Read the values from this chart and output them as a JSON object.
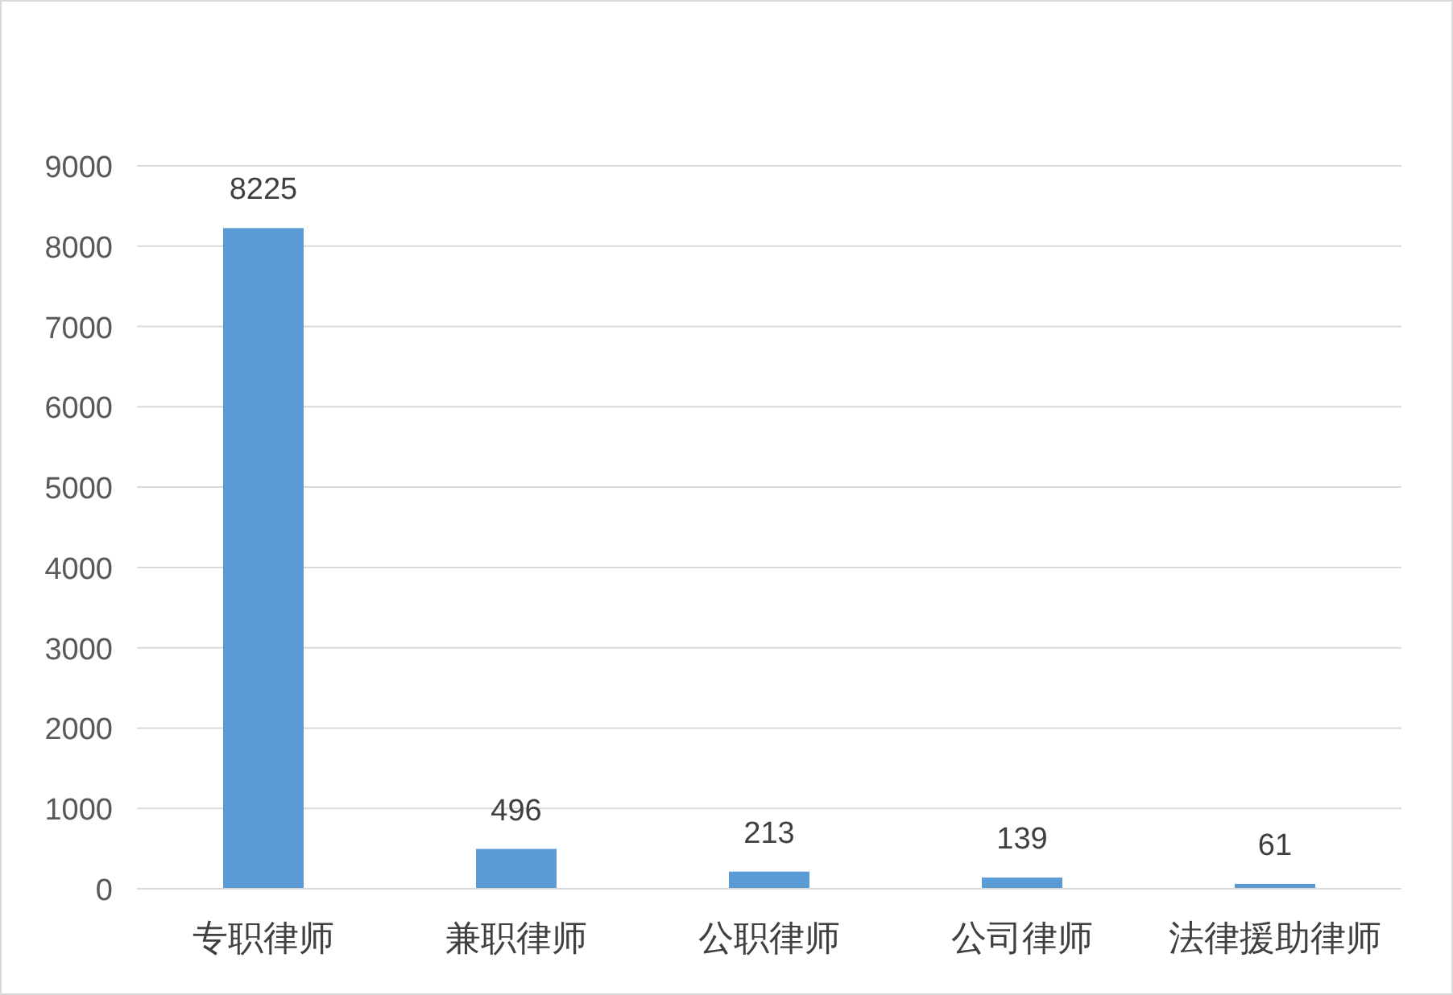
{
  "chart_data": {
    "type": "bar",
    "categories": [
      "专职律师",
      "兼职律师",
      "公职律师",
      "公司律师",
      "法律援助律师"
    ],
    "values": [
      8225,
      496,
      213,
      139,
      61
    ],
    "color": "#5b9bd5",
    "ylim": [
      0,
      9000
    ],
    "yticks": [
      0,
      1000,
      2000,
      3000,
      4000,
      5000,
      6000,
      7000,
      8000,
      9000
    ],
    "grid": "y",
    "data_labels": true
  }
}
